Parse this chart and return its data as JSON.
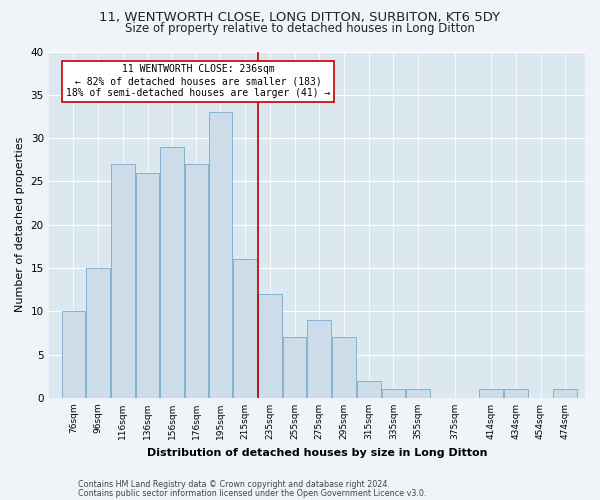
{
  "title1": "11, WENTWORTH CLOSE, LONG DITTON, SURBITON, KT6 5DY",
  "title2": "Size of property relative to detached houses in Long Ditton",
  "xlabel": "Distribution of detached houses by size in Long Ditton",
  "ylabel": "Number of detached properties",
  "footer1": "Contains HM Land Registry data © Crown copyright and database right 2024.",
  "footer2": "Contains public sector information licensed under the Open Government Licence v3.0.",
  "annotation_title": "11 WENTWORTH CLOSE: 236sqm",
  "annotation_line1": "← 82% of detached houses are smaller (183)",
  "annotation_line2": "18% of semi-detached houses are larger (41) →",
  "property_size": 236,
  "bar_left_edges": [
    76,
    96,
    116,
    136,
    156,
    176,
    195,
    215,
    235,
    255,
    275,
    295,
    315,
    335,
    355,
    375,
    414,
    434,
    454,
    474
  ],
  "bar_widths": [
    20,
    20,
    20,
    20,
    20,
    19,
    20,
    20,
    20,
    20,
    20,
    20,
    20,
    20,
    20,
    39,
    20,
    20,
    20,
    20
  ],
  "bar_heights": [
    10,
    15,
    27,
    26,
    29,
    27,
    33,
    16,
    12,
    7,
    9,
    7,
    2,
    1,
    1,
    0,
    1,
    1,
    0,
    1
  ],
  "bar_color": "#ccdce8",
  "bar_edge_color": "#7aaac8",
  "vline_x": 235,
  "vline_color": "#c00000",
  "ylim": [
    0,
    40
  ],
  "yticks": [
    0,
    5,
    10,
    15,
    20,
    25,
    30,
    35,
    40
  ],
  "background_color": "#dce8f0",
  "fig_background": "#f0f4f8",
  "annotation_box_color": "#ffffff",
  "annotation_box_edge": "#c00000",
  "title1_fontsize": 9.5,
  "title2_fontsize": 8.5,
  "xlabel_fontsize": 8,
  "ylabel_fontsize": 8,
  "annotation_fontsize": 7,
  "tick_fontsize": 6.5,
  "tick_labels": [
    "76sqm",
    "96sqm",
    "116sqm",
    "136sqm",
    "156sqm",
    "176sqm",
    "195sqm",
    "215sqm",
    "235sqm",
    "255sqm",
    "275sqm",
    "295sqm",
    "315sqm",
    "335sqm",
    "355sqm",
    "375sqm",
    "414sqm",
    "434sqm",
    "454sqm",
    "474sqm"
  ],
  "footer_fontsize": 5.8,
  "xlim_left": 66,
  "xlim_right": 500
}
